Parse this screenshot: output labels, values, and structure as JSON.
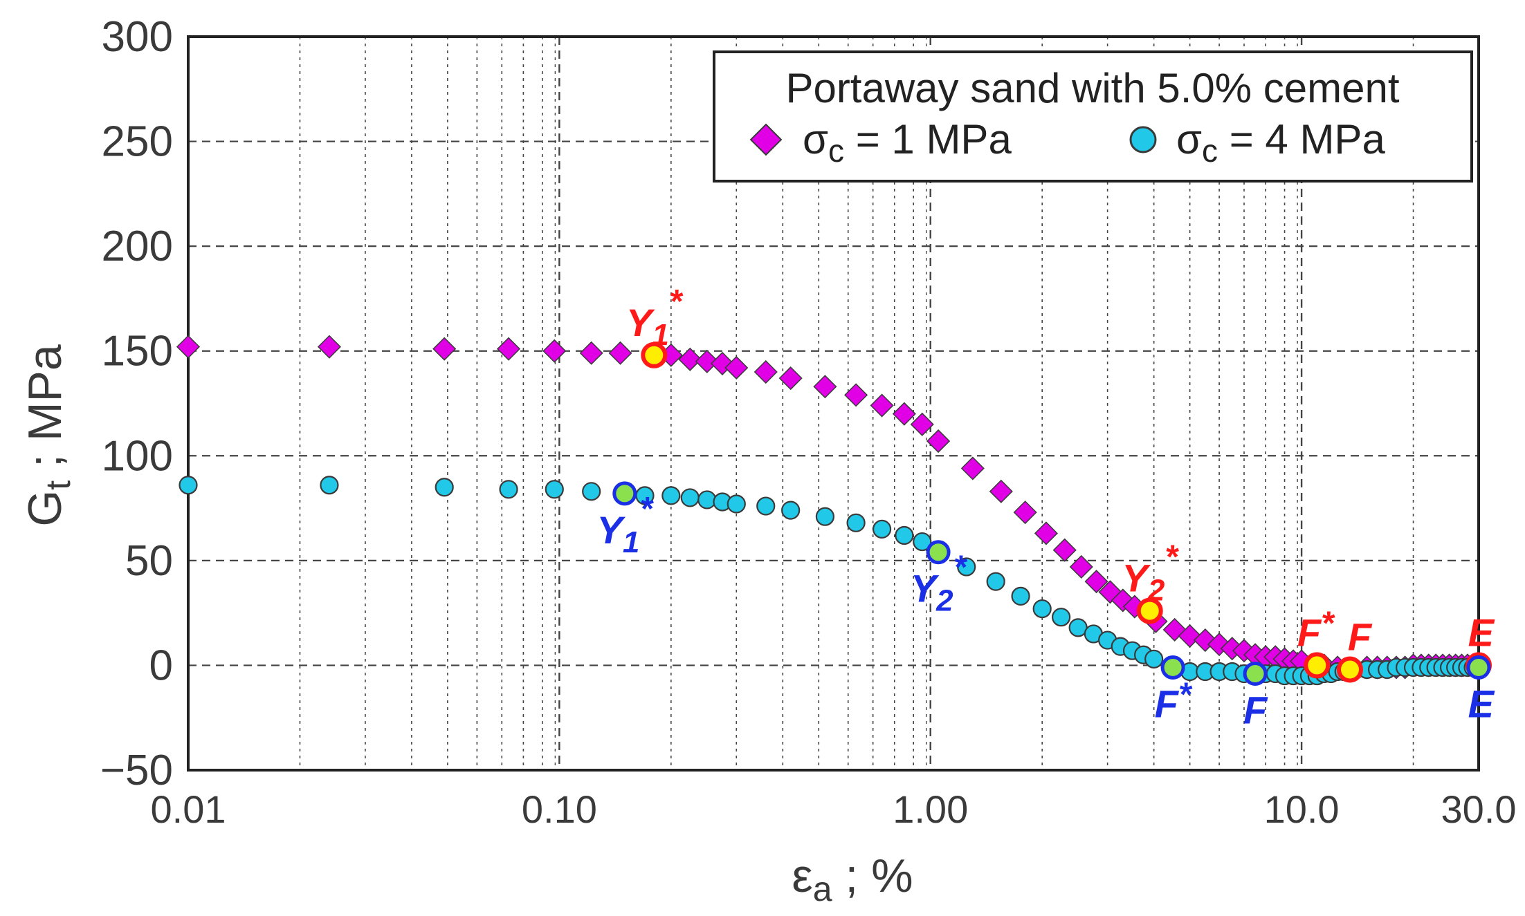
{
  "chart_data": {
    "type": "scatter",
    "title": "",
    "xlabel": "εa ; %",
    "xlabel_main": "ε",
    "xlabel_sub": "a",
    "xlabel_rest": " ; %",
    "ylabel_main": "G",
    "ylabel_sub": "t",
    "ylabel_rest": " ; MPa",
    "x_scale": "log",
    "xlim": [
      0.01,
      30.0
    ],
    "ylim": [
      -50,
      300
    ],
    "x_ticks": [
      {
        "value": 0.01,
        "label": "0.01"
      },
      {
        "value": 0.1,
        "label": "0.10"
      },
      {
        "value": 1.0,
        "label": "1.00"
      },
      {
        "value": 10.0,
        "label": "10.0"
      },
      {
        "value": 30.0,
        "label": "30.0"
      }
    ],
    "y_ticks": [
      {
        "value": 300,
        "label": "300"
      },
      {
        "value": 250,
        "label": "250"
      },
      {
        "value": 200,
        "label": "200"
      },
      {
        "value": 150,
        "label": "150"
      },
      {
        "value": 100,
        "label": "100"
      },
      {
        "value": 50,
        "label": "50"
      },
      {
        "value": 0,
        "label": "0"
      },
      {
        "value": -50,
        "label": "−50"
      }
    ],
    "grid": true,
    "legend": {
      "title": "Portaway sand with 5.0% cement",
      "placement": "top-right",
      "entries": [
        {
          "label_main": "σ",
          "label_sub": "c",
          "label_rest": " = 1 MPa",
          "marker": "diamond",
          "color": "#e100e6"
        },
        {
          "label_main": "σ",
          "label_sub": "c",
          "label_rest": " = 4 MPa",
          "marker": "circle",
          "color": "#22c8e8"
        }
      ]
    },
    "series": [
      {
        "name": "σc = 1 MPa",
        "marker": "diamond",
        "color": "#e100e6",
        "x": [
          0.01,
          0.024,
          0.049,
          0.073,
          0.097,
          0.122,
          0.146,
          0.2,
          0.225,
          0.25,
          0.275,
          0.3,
          0.36,
          0.42,
          0.52,
          0.63,
          0.74,
          0.85,
          0.95,
          1.05,
          1.3,
          1.55,
          1.8,
          2.05,
          2.3,
          2.55,
          2.8,
          3.05,
          3.3,
          3.55,
          4.05,
          4.55,
          5.0,
          5.5,
          6.0,
          6.5,
          7.0,
          7.5,
          8.0,
          8.5,
          9.0,
          9.5,
          10.0,
          11.5,
          12.5,
          14.0,
          15.0,
          16.0,
          17.0,
          18.0,
          19.0,
          20.0,
          21.0,
          22.0,
          23.0,
          24.0,
          25.0,
          26.0,
          27.0,
          28.0,
          29.0
        ],
        "y": [
          152,
          152,
          151,
          151,
          150,
          149,
          149,
          148,
          146,
          145,
          144,
          142,
          140,
          137,
          133,
          129,
          124,
          120,
          115,
          107,
          94,
          83,
          73,
          63,
          55,
          47,
          40,
          35,
          31,
          28,
          21,
          17,
          14,
          12,
          10,
          8,
          7,
          5,
          4,
          4,
          3,
          2,
          2,
          0,
          -1,
          -2,
          -1,
          -1,
          -1,
          -1,
          -1,
          0,
          0,
          0,
          0,
          0,
          0,
          0,
          0,
          0,
          0
        ]
      },
      {
        "name": "σc = 4 MPa",
        "marker": "circle",
        "color": "#22c8e8",
        "x": [
          0.01,
          0.024,
          0.049,
          0.073,
          0.097,
          0.122,
          0.17,
          0.2,
          0.225,
          0.25,
          0.275,
          0.3,
          0.36,
          0.42,
          0.52,
          0.63,
          0.74,
          0.85,
          0.95,
          1.25,
          1.5,
          1.75,
          2.0,
          2.25,
          2.5,
          2.75,
          3.0,
          3.25,
          3.5,
          3.75,
          4.0,
          5.0,
          5.5,
          6.0,
          6.5,
          7.0,
          8.0,
          8.5,
          9.0,
          9.5,
          10.0,
          10.5,
          11.0,
          11.5,
          12.0,
          12.5,
          13.0,
          14.0,
          15.0,
          16.0,
          17.0,
          18.0,
          19.0,
          20.0,
          21.0,
          22.0,
          23.0,
          24.0,
          25.0,
          26.0,
          27.0,
          28.0,
          29.0
        ],
        "y": [
          86,
          86,
          85,
          84,
          84,
          83,
          81,
          81,
          80,
          79,
          78,
          77,
          76,
          74,
          71,
          68,
          65,
          62,
          59,
          47,
          40,
          33,
          27,
          23,
          18,
          15,
          12,
          9,
          7,
          5,
          3,
          -3,
          -3,
          -3,
          -3,
          -4,
          -4,
          -4,
          -5,
          -5,
          -5,
          -5,
          -5,
          -4,
          -4,
          -3,
          -3,
          -2,
          -2,
          -2,
          -2,
          -1,
          -1,
          -1,
          -1,
          -1,
          -1,
          -1,
          -1,
          -1,
          -1,
          -1,
          -1
        ]
      }
    ],
    "highlight_points": [
      {
        "series": "σc = 1 MPa",
        "x": 0.18,
        "y": 148
      },
      {
        "series": "σc = 1 MPa",
        "x": 3.9,
        "y": 26
      },
      {
        "series": "σc = 1 MPa",
        "x": 11.0,
        "y": 0
      },
      {
        "series": "σc = 1 MPa",
        "x": 13.5,
        "y": -2
      },
      {
        "series": "σc = 1 MPa",
        "x": 30.0,
        "y": 0
      },
      {
        "series": "σc = 4 MPa",
        "x": 0.15,
        "y": 82
      },
      {
        "series": "σc = 4 MPa",
        "x": 1.05,
        "y": 54
      },
      {
        "series": "σc = 4 MPa",
        "x": 4.5,
        "y": -1
      },
      {
        "series": "σc = 4 MPa",
        "x": 7.5,
        "y": -4
      },
      {
        "series": "σc = 4 MPa",
        "x": 30.0,
        "y": -1
      }
    ],
    "annotations": [
      {
        "id": "y1s-red",
        "label": "Y",
        "sub": "1",
        "sup": "*",
        "color": "#ff1a1a",
        "x": 0.18,
        "y": 148,
        "anchor": "above"
      },
      {
        "id": "y2s-red",
        "label": "Y",
        "sub": "2",
        "sup": "*",
        "color": "#ff1a1a",
        "x": 3.9,
        "y": 26,
        "anchor": "above"
      },
      {
        "id": "fs-red",
        "label": "F",
        "sub": "",
        "sup": "*",
        "color": "#ff1a1a",
        "x": 11.0,
        "y": 0,
        "anchor": "above"
      },
      {
        "id": "f-red",
        "label": "F",
        "sub": "",
        "sup": "",
        "color": "#ff1a1a",
        "x": 13.5,
        "y": -2,
        "anchor": "above"
      },
      {
        "id": "e-red",
        "label": "E",
        "sub": "",
        "sup": "",
        "color": "#ff1a1a",
        "x": 30.0,
        "y": 0,
        "anchor": "above"
      },
      {
        "id": "y1s-blue",
        "label": "Y",
        "sub": "1",
        "sup": "*",
        "color": "#1a2fe6",
        "x": 0.15,
        "y": 82,
        "anchor": "below"
      },
      {
        "id": "y2s-blue",
        "label": "Y",
        "sub": "2",
        "sup": "*",
        "color": "#1a2fe6",
        "x": 1.05,
        "y": 54,
        "anchor": "below"
      },
      {
        "id": "fs-blue",
        "label": "F",
        "sub": "",
        "sup": "*",
        "color": "#1a2fe6",
        "x": 4.5,
        "y": -1,
        "anchor": "below"
      },
      {
        "id": "f-blue",
        "label": "F",
        "sub": "",
        "sup": "",
        "color": "#1a2fe6",
        "x": 7.5,
        "y": -4,
        "anchor": "below"
      },
      {
        "id": "e-blue",
        "label": "E",
        "sub": "",
        "sup": "",
        "color": "#1a2fe6",
        "x": 30.0,
        "y": -1,
        "anchor": "below"
      }
    ],
    "colors": {
      "highlight_fill_red": "#ffee00",
      "highlight_stroke_red": "#ff1a1a",
      "highlight_fill_blue": "#8be04e",
      "highlight_stroke_blue": "#1a2fe6",
      "marker_stroke": "#3a3a3a",
      "grid": "#444444",
      "axis": "#222222"
    }
  }
}
